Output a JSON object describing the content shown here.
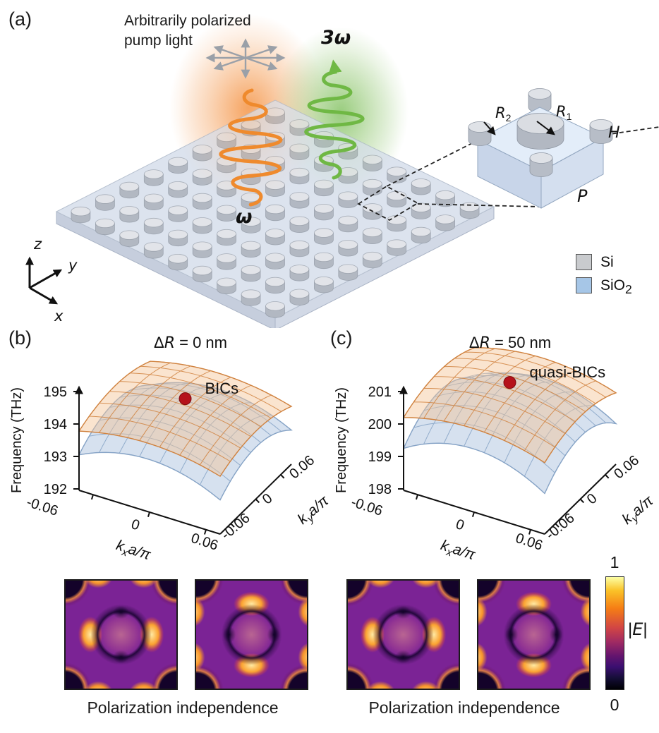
{
  "panel_a": {
    "label": "(a)",
    "pump_label_line1": "Arbitrarily polarized",
    "pump_label_line2": "pump light",
    "pump_frequency": "ω",
    "harmonic_frequency": "3ω",
    "unit_cell": {
      "r2": {
        "base": "R",
        "sub": "2"
      },
      "r1": {
        "base": "R",
        "sub": "1"
      },
      "height": "H",
      "period": "P"
    },
    "legend": {
      "items": [
        {
          "label": "Si",
          "color": "#c9cbce"
        },
        {
          "label_base": "SiO",
          "label_sub": "2",
          "color": "#a6c6e7"
        }
      ]
    },
    "axes": {
      "x": "x",
      "y": "y",
      "z": "z"
    }
  },
  "chart_data": [
    {
      "type": "surface3d",
      "panel_label": "(b)",
      "title": {
        "prefix": "Δ",
        "variable": "R",
        "suffix": " = 0 nm"
      },
      "zlabel": "Frequency (THz)",
      "xlabel": {
        "base": "k",
        "sub": "x",
        "post": "a/π"
      },
      "ylabel": {
        "base": "k",
        "sub": "y",
        "post": "a/π"
      },
      "zticks": [
        192,
        193,
        194,
        195
      ],
      "xticks": [
        "-0.06",
        "0",
        "0.06"
      ],
      "yticks": [
        "-0.06",
        "0",
        "0.06"
      ],
      "zlim": [
        192,
        195
      ],
      "xlim": [
        -0.06,
        0.06
      ],
      "ylim": [
        -0.06,
        0.06
      ],
      "surfaces": [
        {
          "name": "lower-band",
          "color_fill": "rgba(180,201,226,0.55)",
          "color_line": "#86a3c6",
          "center_z": 194.15,
          "edge_drop": 1.1
        },
        {
          "name": "upper-band",
          "color_fill": "rgba(244,196,148,0.45)",
          "color_line": "#d08340",
          "center_z": 194.4,
          "edge_drop": 0.62
        }
      ],
      "marker": {
        "label": "BICs",
        "kx": 0,
        "ky": 0,
        "color": "#b5121b"
      }
    },
    {
      "type": "surface3d",
      "panel_label": "(c)",
      "title": {
        "prefix": "Δ",
        "variable": "R",
        "suffix": " = 50 nm"
      },
      "zlabel": "Frequency (THz)",
      "xlabel": {
        "base": "k",
        "sub": "x",
        "post": "a/π"
      },
      "ylabel": {
        "base": "k",
        "sub": "y",
        "post": "a/π"
      },
      "zticks": [
        198,
        199,
        200,
        201
      ],
      "xticks": [
        "-0.06",
        "0",
        "0.06"
      ],
      "yticks": [
        "-0.06",
        "0",
        "0.06"
      ],
      "zlim": [
        198,
        201
      ],
      "xlim": [
        -0.06,
        0.06
      ],
      "ylim": [
        -0.06,
        0.06
      ],
      "surfaces": [
        {
          "name": "lower-band",
          "color_fill": "rgba(180,201,226,0.55)",
          "color_line": "#86a3c6",
          "center_z": 200.6,
          "edge_drop": 1.35
        },
        {
          "name": "upper-band",
          "color_fill": "rgba(244,196,148,0.45)",
          "color_line": "#d08340",
          "center_z": 200.9,
          "edge_drop": 0.7
        }
      ],
      "marker": {
        "label": "quasi-BICs",
        "kx": 0,
        "ky": 0,
        "color": "#b5121b"
      }
    }
  ],
  "field_maps": {
    "panel_b": {
      "caption": "Polarization independence",
      "maps": [
        {
          "name": "e-field-map-1",
          "orientation": "horizontal"
        },
        {
          "name": "e-field-map-2",
          "orientation": "vertical"
        }
      ]
    },
    "panel_c": {
      "caption": "Polarization independence",
      "maps": [
        {
          "name": "e-field-map-3",
          "orientation": "horizontal"
        },
        {
          "name": "e-field-map-4",
          "orientation": "vertical"
        }
      ]
    }
  },
  "colorbar": {
    "max": "1",
    "min": "0",
    "label": {
      "pre": "|",
      "symbol": "E",
      "post": "|"
    }
  }
}
